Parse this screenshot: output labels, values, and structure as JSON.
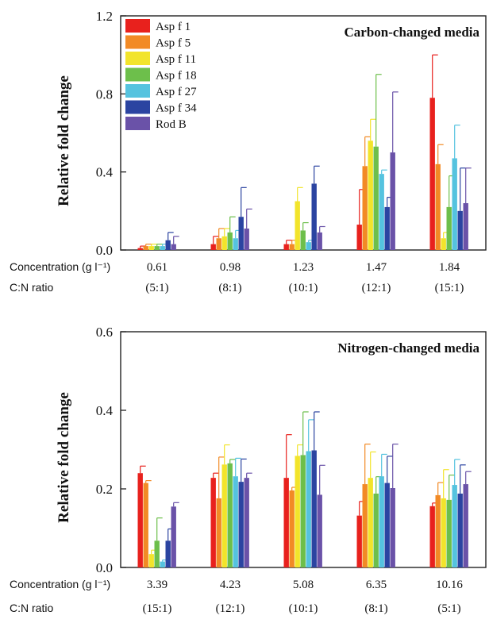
{
  "chart_data": [
    {
      "type": "bar",
      "title": "Carbon-changed media",
      "ylabel": "Relative fold change",
      "ylim": [
        0,
        1.2
      ],
      "yticks": [
        "0.0",
        "0.4",
        "0.8",
        "1.2"
      ],
      "row_labels": [
        "Concentration (g l⁻¹)",
        "C:N ratio"
      ],
      "categories": [
        "0.61",
        "0.98",
        "1.23",
        "1.47",
        "1.84"
      ],
      "ratios": [
        "(5:1)",
        "(8:1)",
        "(10:1)",
        "(12:1)",
        "(15:1)"
      ],
      "legend": "top-left",
      "series": [
        {
          "name": "Asp f 1",
          "color": "#e8211d",
          "values": [
            0.01,
            0.03,
            0.03,
            0.13,
            0.78
          ],
          "errors": [
            0.01,
            0.04,
            0.02,
            0.18,
            0.22
          ]
        },
        {
          "name": "Asp f 5",
          "color": "#f28a25",
          "values": [
            0.02,
            0.06,
            0.03,
            0.43,
            0.44
          ],
          "errors": [
            0.01,
            0.05,
            0.02,
            0.15,
            0.1
          ]
        },
        {
          "name": "Asp f 11",
          "color": "#f2e42b",
          "values": [
            0.02,
            0.07,
            0.25,
            0.56,
            0.06
          ],
          "errors": [
            0.01,
            0.04,
            0.07,
            0.11,
            0.03
          ]
        },
        {
          "name": "Asp f 18",
          "color": "#6dbf4b",
          "values": [
            0.02,
            0.09,
            0.1,
            0.53,
            0.22
          ],
          "errors": [
            0.01,
            0.08,
            0.04,
            0.37,
            0.16
          ]
        },
        {
          "name": "Asp f 27",
          "color": "#55c3df",
          "values": [
            0.02,
            0.06,
            0.04,
            0.39,
            0.47
          ],
          "errors": [
            0.01,
            0.04,
            0.01,
            0.02,
            0.17
          ]
        },
        {
          "name": "Asp f 34",
          "color": "#2b44a1",
          "values": [
            0.05,
            0.17,
            0.34,
            0.22,
            0.2
          ],
          "errors": [
            0.04,
            0.15,
            0.09,
            0.05,
            0.22
          ]
        },
        {
          "name": "Rod B",
          "color": "#6a52a8",
          "values": [
            0.03,
            0.11,
            0.09,
            0.5,
            0.24
          ],
          "errors": [
            0.04,
            0.1,
            0.03,
            0.31,
            0.18
          ]
        }
      ]
    },
    {
      "type": "bar",
      "title": "Nitrogen-changed media",
      "ylabel": "Relative fold change",
      "ylim": [
        0,
        0.6
      ],
      "yticks": [
        "0.0",
        "0.2",
        "0.4",
        "0.6"
      ],
      "row_labels": [
        "Concentration (g l⁻¹)",
        "C:N ratio"
      ],
      "categories": [
        "3.39",
        "4.23",
        "5.08",
        "6.35",
        "10.16"
      ],
      "ratios": [
        "(15:1)",
        "(12:1)",
        "(10:1)",
        "(8:1)",
        "(5:1)"
      ],
      "series": [
        {
          "name": "Asp f 1",
          "color": "#e8211d",
          "values": [
            0.24,
            0.228,
            0.228,
            0.132,
            0.156
          ],
          "errors": [
            0.018,
            0.012,
            0.11,
            0.036,
            0.008
          ]
        },
        {
          "name": "Asp f 5",
          "color": "#f28a25",
          "values": [
            0.215,
            0.176,
            0.196,
            0.212,
            0.184
          ],
          "errors": [
            0.006,
            0.105,
            0.008,
            0.102,
            0.032
          ]
        },
        {
          "name": "Asp f 11",
          "color": "#f2e42b",
          "values": [
            0.034,
            0.262,
            0.284,
            0.228,
            0.176
          ],
          "errors": [
            0.01,
            0.05,
            0.028,
            0.066,
            0.073
          ]
        },
        {
          "name": "Asp f 18",
          "color": "#6dbf4b",
          "values": [
            0.068,
            0.265,
            0.286,
            0.188,
            0.172
          ],
          "errors": [
            0.058,
            0.01,
            0.11,
            0.043,
            0.063
          ]
        },
        {
          "name": "Asp f 27",
          "color": "#55c3df",
          "values": [
            0.015,
            0.232,
            0.296,
            0.232,
            0.21
          ],
          "errors": [
            0.004,
            0.046,
            0.08,
            0.056,
            0.065
          ]
        },
        {
          "name": "Asp f 34",
          "color": "#2b44a1",
          "values": [
            0.068,
            0.218,
            0.298,
            0.215,
            0.188
          ],
          "errors": [
            0.03,
            0.058,
            0.098,
            0.068,
            0.073
          ]
        },
        {
          "name": "Rod B",
          "color": "#6a52a8",
          "values": [
            0.155,
            0.228,
            0.185,
            0.202,
            0.212
          ],
          "errors": [
            0.01,
            0.012,
            0.075,
            0.112,
            0.032
          ]
        }
      ]
    }
  ]
}
